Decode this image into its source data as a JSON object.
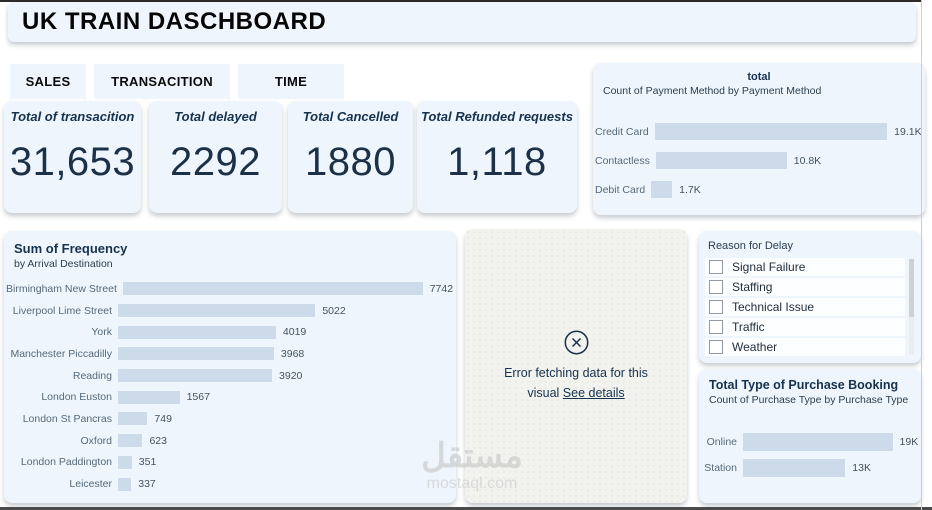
{
  "title": "UK TRAIN DASCHBOARD",
  "tabs": [
    {
      "label": "SALES"
    },
    {
      "label": "TRANSACITION"
    },
    {
      "label": "TIME"
    }
  ],
  "kpis": [
    {
      "label": "Total of transacition",
      "value": "31,653"
    },
    {
      "label": "Total delayed",
      "value": "2292"
    },
    {
      "label": "Total Cancelled",
      "value": "1880"
    },
    {
      "label": "Total Refunded requests",
      "value": "1,118"
    }
  ],
  "error_panel": {
    "icon": "circle-x-icon",
    "message": "Error fetching data for this visual",
    "link_text": "See details"
  },
  "delay_filter": {
    "title": "Reason for Delay",
    "options": [
      "Signal Failure",
      "Staffing",
      "Technical Issue",
      "Traffic",
      "Weather"
    ],
    "checked": [
      false,
      false,
      false,
      false,
      false
    ]
  },
  "watermark": {
    "arabic": "مستقل",
    "domain": "mostaql.com"
  },
  "colors": {
    "card_bg": "#eef5fc",
    "bar_fill": "#ccdaea",
    "text_dark": "#1c3147",
    "error_bg": "#f2f2ef"
  },
  "chart_data": [
    {
      "type": "bar",
      "orientation": "horizontal",
      "title": "total",
      "subtitle": "Count of Payment Method by Payment Method",
      "categories": [
        "Credit Card",
        "Contactless",
        "Debit Card"
      ],
      "values": [
        19100,
        10800,
        1700
      ],
      "value_labels": [
        "19.1K",
        "10.8K",
        "1.7K"
      ],
      "xlim": [
        0,
        19100
      ],
      "legend": false,
      "grid": false
    },
    {
      "type": "bar",
      "orientation": "horizontal",
      "title": "Sum of Frequency",
      "subtitle": "by Arrival Destination",
      "categories": [
        "Birmingham New Street",
        "Liverpool Lime Street",
        "York",
        "Manchester Piccadilly",
        "Reading",
        "London Euston",
        "London St Pancras",
        "Oxford",
        "London Paddington",
        "Leicester"
      ],
      "values": [
        7742,
        5022,
        4019,
        3968,
        3920,
        1567,
        749,
        623,
        351,
        337
      ],
      "value_labels": [
        "7742",
        "5022",
        "4019",
        "3968",
        "3920",
        "1567",
        "749",
        "623",
        "351",
        "337"
      ],
      "xlim": [
        0,
        7742
      ],
      "legend": false,
      "grid": false
    },
    {
      "type": "bar",
      "orientation": "horizontal",
      "title": "Total Type of Purchase Booking",
      "subtitle": "Count of Purchase Type by Purchase Type",
      "categories": [
        "Online",
        "Station"
      ],
      "values": [
        19000,
        13000
      ],
      "value_labels": [
        "19K",
        "13K"
      ],
      "xlim": [
        0,
        19000
      ],
      "legend": false,
      "grid": false
    }
  ]
}
